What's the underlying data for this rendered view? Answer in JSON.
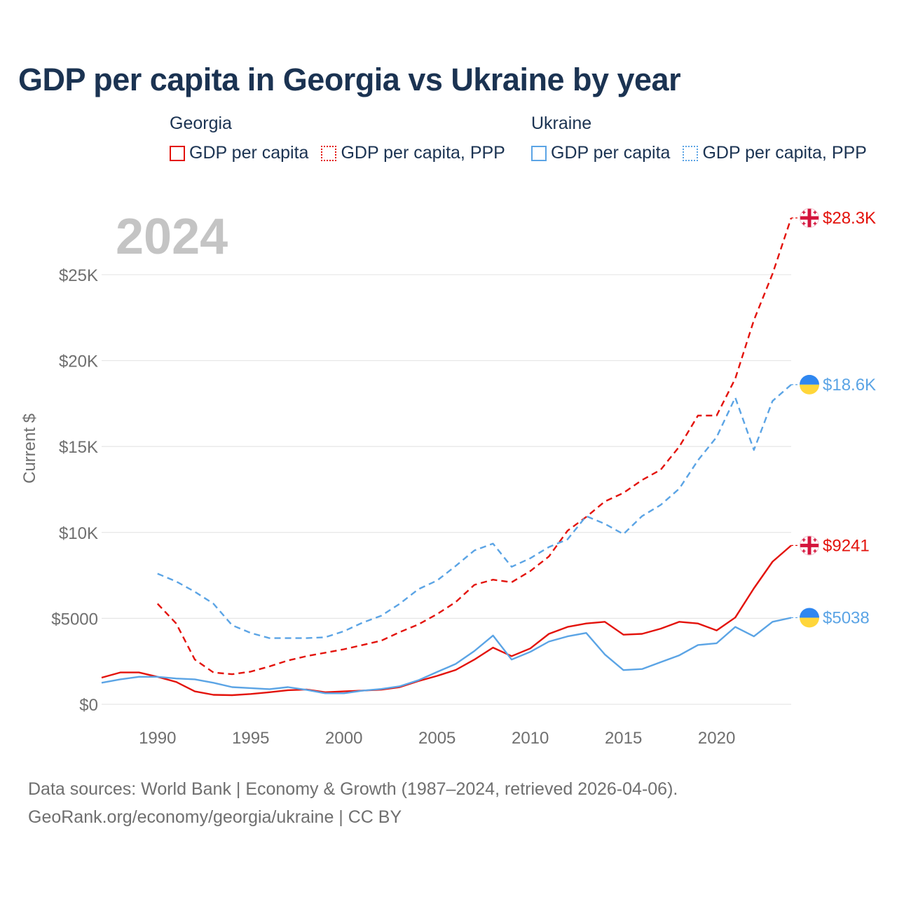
{
  "title": "GDP per capita in Georgia vs Ukraine by year",
  "legend": [
    {
      "group": "Georgia",
      "color": "#e3120b",
      "items": [
        {
          "label": "GDP per capita",
          "style": "solid"
        },
        {
          "label": "GDP per capita, PPP",
          "style": "dotted"
        }
      ]
    },
    {
      "group": "Ukraine",
      "color": "#5ba4e5",
      "items": [
        {
          "label": "GDP per capita",
          "style": "solid"
        },
        {
          "label": "GDP per capita, PPP",
          "style": "dotted"
        }
      ]
    }
  ],
  "year_watermark": "2024",
  "footer": {
    "line1": "Data sources: World Bank | Economy & Growth (1987–2024, retrieved 2026-04-06).",
    "line2": "GeoRank.org/economy/georgia/ukraine | CC BY"
  },
  "chart_data": {
    "type": "line",
    "title": "GDP per capita in Georgia vs Ukraine by year",
    "xlabel": "",
    "ylabel": "Current $",
    "xlim": [
      1987,
      2024
    ],
    "ylim": [
      0,
      28300
    ],
    "x_ticks": [
      1990,
      1995,
      2000,
      2005,
      2010,
      2015,
      2020
    ],
    "x_tick_labels": [
      "1990",
      "1995",
      "2000",
      "2005",
      "2010",
      "2015",
      "2020"
    ],
    "y_ticks": [
      0,
      5000,
      10000,
      15000,
      20000,
      25000
    ],
    "y_tick_labels": [
      "$0",
      "$5000",
      "$10K",
      "$15K",
      "$20K",
      "$25K"
    ],
    "grid": "horizontal",
    "series": [
      {
        "name": "Georgia GDP per capita",
        "color": "#e3120b",
        "dash": "solid",
        "end_label": "$9241",
        "flag": "georgia",
        "x": [
          1987,
          1988,
          1989,
          1990,
          1991,
          1992,
          1993,
          1994,
          1995,
          1996,
          1997,
          1998,
          1999,
          2000,
          2001,
          2002,
          2003,
          2004,
          2005,
          2006,
          2007,
          2008,
          2009,
          2010,
          2011,
          2012,
          2013,
          2014,
          2015,
          2016,
          2017,
          2018,
          2019,
          2020,
          2021,
          2022,
          2023,
          2024
        ],
        "values": [
          1550,
          1850,
          1850,
          1600,
          1300,
          750,
          550,
          530,
          600,
          700,
          820,
          860,
          700,
          750,
          800,
          850,
          1000,
          1350,
          1650,
          2000,
          2600,
          3300,
          2800,
          3250,
          4100,
          4500,
          4700,
          4800,
          4050,
          4100,
          4400,
          4800,
          4700,
          4300,
          5050,
          6750,
          8300,
          9241
        ]
      },
      {
        "name": "Georgia GDP per capita, PPP",
        "color": "#e3120b",
        "dash": "dashed",
        "end_label": "$28.3K",
        "flag": "georgia",
        "x": [
          1990,
          1991,
          1992,
          1993,
          1994,
          1995,
          1996,
          1997,
          1998,
          1999,
          2000,
          2001,
          2002,
          2003,
          2004,
          2005,
          2006,
          2007,
          2008,
          2009,
          2010,
          2011,
          2012,
          2013,
          2014,
          2015,
          2016,
          2017,
          2018,
          2019,
          2020,
          2021,
          2022,
          2023,
          2024
        ],
        "values": [
          5850,
          4700,
          2600,
          1850,
          1750,
          1900,
          2200,
          2550,
          2800,
          3000,
          3200,
          3450,
          3700,
          4200,
          4650,
          5250,
          5950,
          6950,
          7250,
          7100,
          7750,
          8600,
          10100,
          10900,
          11800,
          12300,
          13050,
          13650,
          15000,
          16800,
          16800,
          18950,
          22350,
          25050,
          28300
        ]
      },
      {
        "name": "Ukraine GDP per capita",
        "color": "#5ba4e5",
        "dash": "solid",
        "end_label": "$5038",
        "flag": "ukraine",
        "x": [
          1987,
          1988,
          1989,
          1990,
          1991,
          1992,
          1993,
          1994,
          1995,
          1996,
          1997,
          1998,
          1999,
          2000,
          2001,
          2002,
          2003,
          2004,
          2005,
          2006,
          2007,
          2008,
          2009,
          2010,
          2011,
          2012,
          2013,
          2014,
          2015,
          2016,
          2017,
          2018,
          2019,
          2020,
          2021,
          2022,
          2023,
          2024
        ],
        "values": [
          1250,
          1450,
          1600,
          1600,
          1500,
          1450,
          1250,
          1000,
          940,
          880,
          1000,
          840,
          640,
          640,
          790,
          890,
          1050,
          1400,
          1880,
          2350,
          3100,
          4000,
          2600,
          3050,
          3650,
          3950,
          4150,
          2900,
          1990,
          2050,
          2450,
          2850,
          3450,
          3550,
          4500,
          3950,
          4800,
          5038
        ]
      },
      {
        "name": "Ukraine GDP per capita, PPP",
        "color": "#5ba4e5",
        "dash": "dashed",
        "end_label": "$18.6K",
        "flag": "ukraine",
        "x": [
          1990,
          1991,
          1992,
          1993,
          1994,
          1995,
          1996,
          1997,
          1998,
          1999,
          2000,
          2001,
          2002,
          2003,
          2004,
          2005,
          2006,
          2007,
          2008,
          2009,
          2010,
          2011,
          2012,
          2013,
          2014,
          2015,
          2016,
          2017,
          2018,
          2019,
          2020,
          2021,
          2022,
          2023,
          2024
        ],
        "values": [
          7600,
          7150,
          6550,
          5850,
          4600,
          4150,
          3850,
          3850,
          3850,
          3900,
          4250,
          4750,
          5150,
          5850,
          6700,
          7200,
          8050,
          8950,
          9350,
          8000,
          8500,
          9150,
          9600,
          10950,
          10500,
          9900,
          10950,
          11600,
          12550,
          14200,
          15550,
          17850,
          14800,
          17650,
          18600
        ]
      }
    ]
  }
}
